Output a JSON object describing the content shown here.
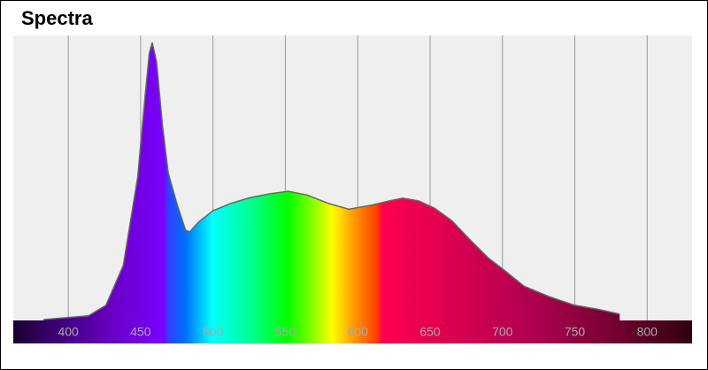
{
  "chart_data": {
    "type": "area",
    "title": "Spectra",
    "x": [
      383,
      414,
      426,
      438,
      448,
      453,
      456,
      458,
      461,
      465,
      469,
      475,
      481,
      484,
      490,
      500,
      512,
      525,
      540,
      552,
      565,
      580,
      594,
      610,
      622,
      631,
      642,
      653,
      665,
      677,
      690,
      701,
      715,
      732,
      750,
      765,
      781
    ],
    "values": [
      0.003,
      0.016,
      0.053,
      0.193,
      0.503,
      0.783,
      0.938,
      0.975,
      0.907,
      0.689,
      0.519,
      0.41,
      0.317,
      0.311,
      0.345,
      0.385,
      0.41,
      0.43,
      0.445,
      0.453,
      0.44,
      0.41,
      0.39,
      0.405,
      0.42,
      0.429,
      0.42,
      0.394,
      0.35,
      0.286,
      0.22,
      0.177,
      0.12,
      0.084,
      0.053,
      0.04,
      0.022
    ],
    "xlim": [
      362,
      831
    ],
    "xticks": [
      400,
      450,
      500,
      550,
      600,
      650,
      700,
      750,
      800
    ],
    "ylim": [
      0,
      1
    ],
    "grid": true,
    "line_color": "#666666"
  }
}
